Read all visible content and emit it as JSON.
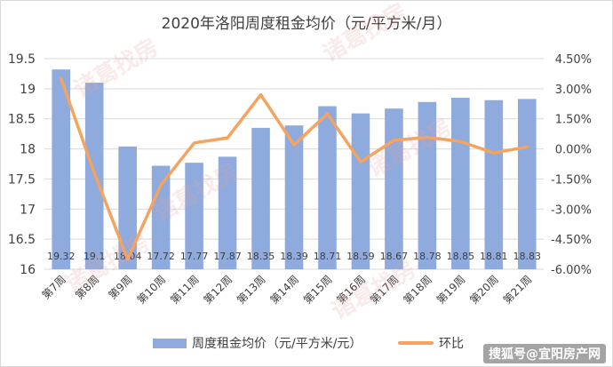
{
  "chart_data": {
    "type": "bar+line",
    "title": "2020年洛阳周度租金均价（元/平方米/月）",
    "categories": [
      "第7周",
      "第8周",
      "第9周",
      "第10周",
      "第11周",
      "第12周",
      "第13周",
      "第14周",
      "第15周",
      "第16周",
      "第17周",
      "第18周",
      "第19周",
      "第20周",
      "第21周"
    ],
    "series": [
      {
        "name": "周度租金均价（元/平方米/元）",
        "kind": "bar",
        "axis": "left",
        "values": [
          19.32,
          19.1,
          18.04,
          17.72,
          17.77,
          17.87,
          18.35,
          18.39,
          18.71,
          18.59,
          18.67,
          18.78,
          18.85,
          18.81,
          18.83
        ],
        "labels": [
          "19.32",
          "19.1",
          "18.04",
          "17.72",
          "17.77",
          "17.87",
          "18.35",
          "18.39",
          "18.71",
          "18.59",
          "18.67",
          "18.78",
          "18.85",
          "18.81",
          "18.83"
        ]
      },
      {
        "name": "环比",
        "kind": "line",
        "axis": "right",
        "values": [
          3.5,
          -1.2,
          -5.5,
          -1.8,
          0.3,
          0.55,
          2.7,
          0.2,
          1.75,
          -0.65,
          0.43,
          0.58,
          0.37,
          -0.2,
          0.1
        ]
      }
    ],
    "y_left": {
      "min": 16,
      "max": 19.5,
      "ticks": [
        "16",
        "16.5",
        "17",
        "17.5",
        "18",
        "18.5",
        "19",
        "19.5"
      ]
    },
    "y_right": {
      "min": -6,
      "max": 4.5,
      "ticks": [
        "-6.00%",
        "-4.50%",
        "-3.00%",
        "-1.50%",
        "0.00%",
        "1.50%",
        "3.00%",
        "4.50%"
      ]
    },
    "grid": true,
    "legend_position": "bottom"
  },
  "colors": {
    "bar": "#8faadc",
    "line": "#f4a460",
    "grid": "#d9d9d9",
    "text": "#404040"
  },
  "watermark": "诸葛找房",
  "credit": "搜狐号@宜阳房产网"
}
